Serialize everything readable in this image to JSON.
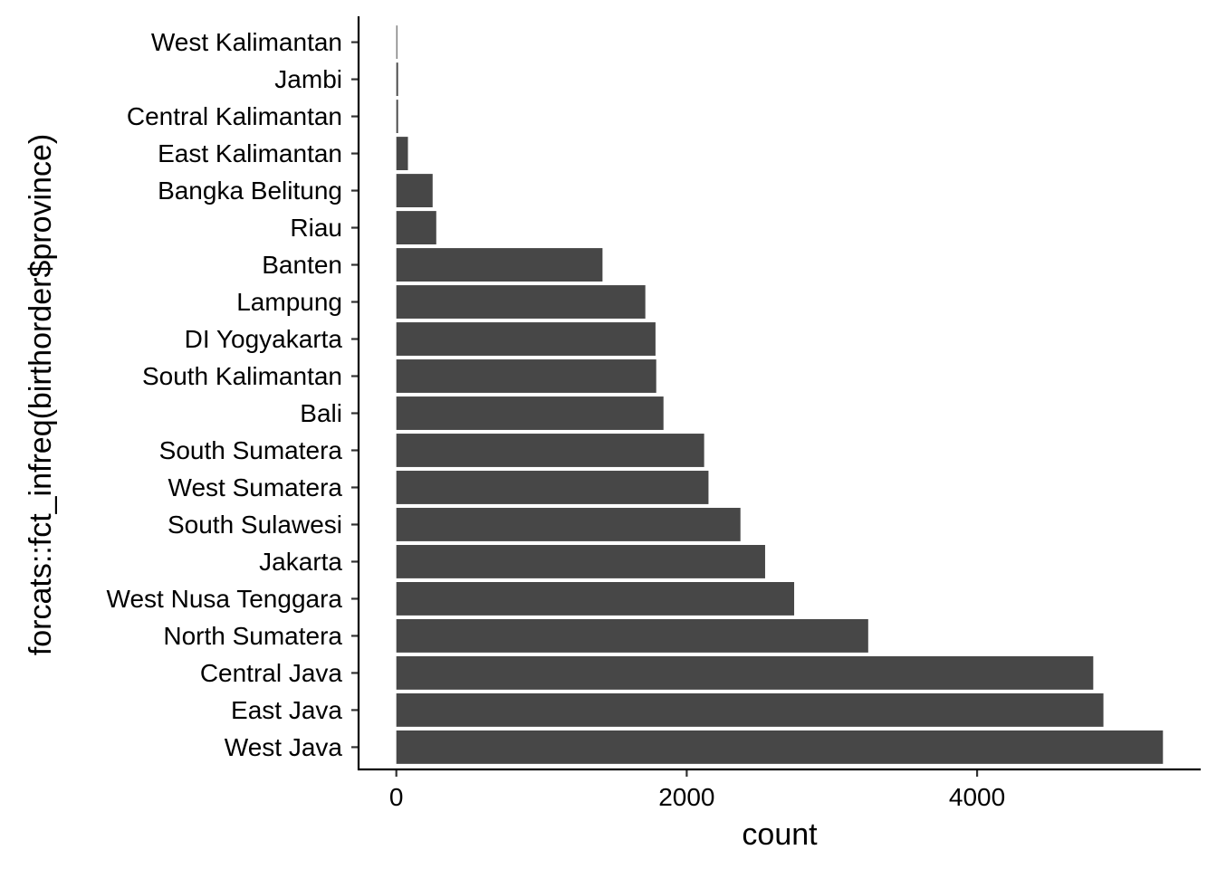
{
  "chart_data": {
    "type": "bar",
    "orientation": "horizontal",
    "title": "",
    "xlabel": "count",
    "ylabel": "forcats::fct_infreq(birthorder$province)",
    "categories": [
      "West Kalimantan",
      "Jambi",
      "Central Kalimantan",
      "East Kalimantan",
      "Bangka Belitung",
      "Riau",
      "Banten",
      "Lampung",
      "DI Yogyakarta",
      "South Kalimantan",
      "Bali",
      "South Sumatera",
      "West Sumatera",
      "South Sulawesi",
      "Jakarta",
      "West Nusa Tenggara",
      "North Sumatera",
      "Central Java",
      "East Java",
      "West Java"
    ],
    "values": [
      4,
      12,
      12,
      80,
      250,
      275,
      1420,
      1715,
      1785,
      1790,
      1840,
      2120,
      2150,
      2370,
      2540,
      2740,
      3250,
      4800,
      4870,
      5280
    ],
    "xticks": [
      0,
      2000,
      4000
    ],
    "xtick_labels": [
      "0",
      "2000",
      "4000"
    ],
    "xlim": [
      -260,
      5540
    ],
    "grid": false,
    "bar_color": "#474747"
  }
}
